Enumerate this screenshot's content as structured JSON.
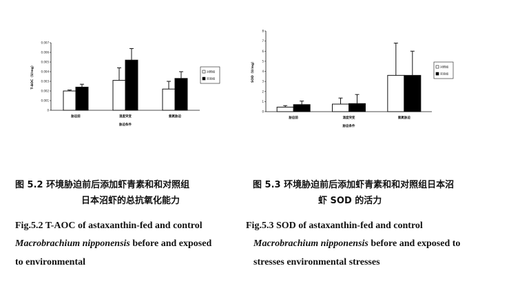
{
  "chart_data": [
    {
      "type": "bar",
      "ylabel": "T-AOC（U/mg）",
      "xlabel": "胁迫条件",
      "categories": [
        "胁迫前",
        "温度突变",
        "氨氮胁迫"
      ],
      "yticks": [
        "0",
        "0.001",
        "0.002",
        "0.003",
        "0.004",
        "0.005",
        "0.006",
        "0.007"
      ],
      "ylim": [
        0,
        0.007
      ],
      "legend_position": "right",
      "grid": false,
      "series": [
        {
          "name": "对照组",
          "color": "#ffffff",
          "values": [
            0.002,
            0.0031,
            0.0022
          ],
          "errors": [
            0.0001,
            0.0013,
            0.0008
          ]
        },
        {
          "name": "实验组",
          "color": "#000000",
          "values": [
            0.0024,
            0.0052,
            0.0033
          ],
          "errors": [
            0.0003,
            0.0012,
            0.0007
          ]
        }
      ]
    },
    {
      "type": "bar",
      "ylabel": "SOD（U/mg）",
      "xlabel": "胁迫条件",
      "categories": [
        "胁迫前",
        "温度突变",
        "氨氮胁迫"
      ],
      "yticks": [
        "0",
        "1",
        "2",
        "3",
        "4",
        "5",
        "6",
        "7",
        "8"
      ],
      "ylim": [
        0,
        8
      ],
      "legend_position": "right",
      "grid": false,
      "series": [
        {
          "name": "对照组",
          "color": "#ffffff",
          "values": [
            0.45,
            0.75,
            3.6
          ],
          "errors": [
            0.15,
            0.6,
            3.2
          ]
        },
        {
          "name": "实验组",
          "color": "#000000",
          "values": [
            0.7,
            0.8,
            3.6
          ],
          "errors": [
            0.35,
            0.9,
            2.4
          ]
        }
      ]
    }
  ],
  "captions": {
    "fig52_zh_line1": "图 5.2  环境胁迫前后添加虾青素和和对照组",
    "fig52_zh_line2": "日本沼虾的总抗氧化能力",
    "fig52_en_line1": "Fig.5.2 T-AOC of astaxanthin-fed and control",
    "fig52_en_line2_italic": "Macrobrachium nipponensis",
    "fig52_en_line2_rest": " before and exposed",
    "fig52_en_line3": "to environmental",
    "fig53_zh_line1": "图 5.3 环境胁迫前后添加虾青素和和对照组日本沼",
    "fig53_zh_line2": "虾 SOD 的活力",
    "fig53_en_line1": "Fig.5.3 SOD of astaxanthin-fed and control",
    "fig53_en_line2_italic": "Macrobrachium nipponensis",
    "fig53_en_line2_rest": " before and exposed to",
    "fig53_en_line3": "stresses environmental stresses"
  }
}
